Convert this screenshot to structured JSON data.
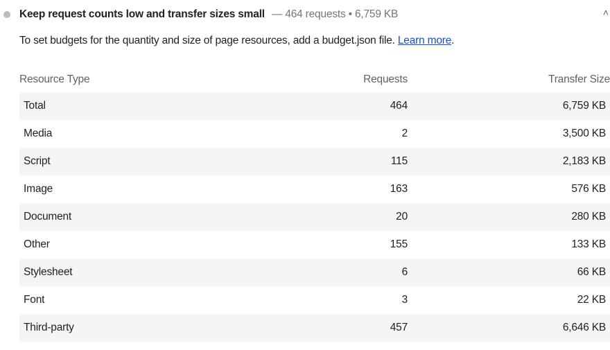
{
  "audit": {
    "title": "Keep request counts low and transfer sizes small",
    "summary": "— 464 requests • 6,759 KB",
    "status_icon": "gray-circle-icon",
    "collapse_icon": "chevron-up-icon",
    "description": "To set budgets for the quantity and size of page resources, add a budget.json file. ",
    "learn_more": "Learn more",
    "description_end": "."
  },
  "table": {
    "headers": [
      "Resource Type",
      "Requests",
      "Transfer Size"
    ],
    "rows": [
      [
        "Total",
        "464",
        "6,759 KB"
      ],
      [
        "Media",
        "2",
        "3,500 KB"
      ],
      [
        "Script",
        "115",
        "2,183 KB"
      ],
      [
        "Image",
        "163",
        "576 KB"
      ],
      [
        "Document",
        "20",
        "280 KB"
      ],
      [
        "Other",
        "155",
        "133 KB"
      ],
      [
        "Stylesheet",
        "6",
        "66 KB"
      ],
      [
        "Font",
        "3",
        "22 KB"
      ],
      [
        "Third-party",
        "457",
        "6,646 KB"
      ]
    ]
  }
}
